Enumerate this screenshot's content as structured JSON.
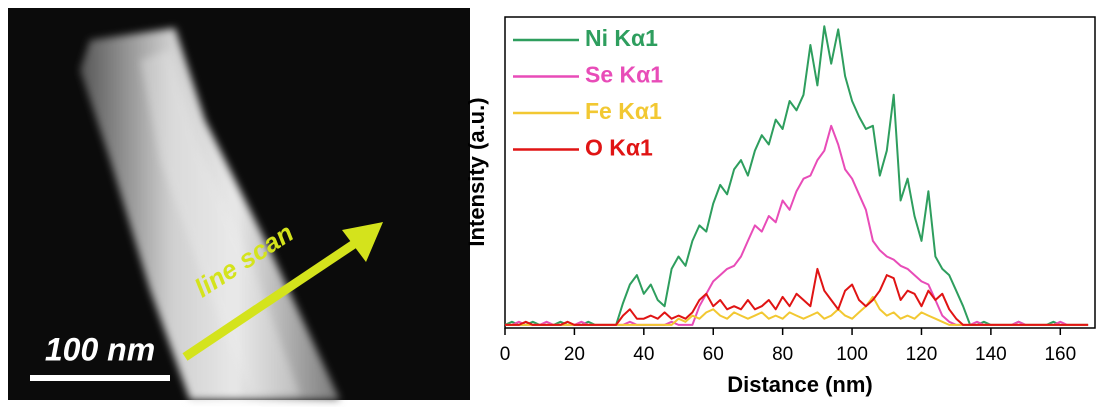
{
  "image": {
    "annotation": "line scan",
    "scale_bar": "100 nm"
  },
  "chart_data": {
    "type": "line",
    "xlabel": "Distance (nm)",
    "ylabel": "Intensity (a.u.)",
    "xlim": [
      0,
      170
    ],
    "ylim": [
      0,
      100
    ],
    "xticks": [
      0,
      20,
      40,
      60,
      80,
      100,
      120,
      140,
      160
    ],
    "legend": "upper left",
    "x": [
      0,
      2,
      4,
      6,
      8,
      10,
      12,
      14,
      16,
      18,
      20,
      22,
      24,
      26,
      28,
      30,
      32,
      34,
      36,
      38,
      40,
      42,
      44,
      46,
      48,
      50,
      52,
      54,
      56,
      58,
      60,
      62,
      64,
      66,
      68,
      70,
      72,
      74,
      76,
      78,
      80,
      82,
      84,
      86,
      88,
      90,
      92,
      94,
      96,
      98,
      100,
      102,
      104,
      106,
      108,
      110,
      112,
      114,
      116,
      118,
      120,
      122,
      124,
      126,
      128,
      130,
      132,
      134,
      136,
      138,
      140,
      142,
      144,
      146,
      148,
      150,
      152,
      154,
      156,
      158,
      160,
      162,
      164,
      166,
      168
    ],
    "series": [
      {
        "name": "Ni Kα1",
        "color": "#2e9e5e",
        "values": [
          1,
          2,
          1,
          1,
          2,
          1,
          1,
          1,
          2,
          1,
          1,
          1,
          2,
          1,
          1,
          1,
          1,
          8,
          14,
          17,
          11,
          14,
          9,
          7,
          19,
          23,
          20,
          28,
          33,
          31,
          40,
          46,
          43,
          51,
          54,
          49,
          57,
          62,
          59,
          67,
          64,
          73,
          70,
          75,
          91,
          78,
          97,
          85,
          96,
          81,
          73,
          68,
          64,
          65,
          49,
          57,
          75,
          41,
          48,
          36,
          28,
          44,
          23,
          19,
          17,
          12,
          7,
          1,
          1,
          2,
          1,
          1,
          1,
          1,
          2,
          1,
          1,
          1,
          1,
          2,
          1,
          1,
          1,
          1,
          1
        ]
      },
      {
        "name": "Se Kα1",
        "color": "#e84cb8",
        "values": [
          1,
          1,
          2,
          1,
          1,
          1,
          2,
          1,
          1,
          1,
          1,
          2,
          1,
          1,
          1,
          1,
          1,
          1,
          2,
          1,
          1,
          1,
          1,
          1,
          2,
          1,
          1,
          1,
          7,
          11,
          15,
          17,
          19,
          20,
          23,
          28,
          33,
          31,
          36,
          34,
          41,
          38,
          44,
          48,
          49,
          54,
          57,
          65,
          59,
          51,
          48,
          43,
          38,
          28,
          25,
          23,
          22,
          20,
          19,
          17,
          15,
          14,
          9,
          4,
          2,
          1,
          1,
          1,
          2,
          1,
          1,
          1,
          1,
          1,
          2,
          1,
          1,
          1,
          1,
          1,
          2,
          1,
          1,
          1,
          1
        ]
      },
      {
        "name": "Fe Kα1",
        "color": "#f2c832",
        "values": [
          1,
          1,
          1,
          1,
          1,
          1,
          1,
          1,
          1,
          1,
          1,
          1,
          1,
          1,
          1,
          1,
          1,
          1,
          1,
          1,
          1,
          1,
          1,
          1,
          1,
          3,
          2,
          4,
          3,
          5,
          6,
          4,
          3,
          5,
          4,
          3,
          4,
          5,
          3,
          4,
          3,
          5,
          4,
          3,
          4,
          5,
          3,
          4,
          6,
          4,
          3,
          5,
          7,
          10,
          6,
          4,
          5,
          3,
          4,
          3,
          5,
          4,
          3,
          2,
          1,
          1,
          1,
          1,
          1,
          1,
          1,
          1,
          1,
          1,
          1,
          1,
          1,
          1,
          1,
          1,
          1,
          1,
          1,
          1,
          1
        ]
      },
      {
        "name": "O Kα1",
        "color": "#e01414",
        "values": [
          1,
          1,
          1,
          2,
          1,
          1,
          1,
          1,
          1,
          2,
          1,
          1,
          1,
          1,
          1,
          1,
          1,
          4,
          6,
          3,
          3,
          4,
          3,
          5,
          3,
          4,
          3,
          5,
          9,
          11,
          7,
          9,
          6,
          7,
          6,
          9,
          6,
          7,
          9,
          6,
          10,
          7,
          11,
          9,
          7,
          19,
          12,
          9,
          6,
          12,
          14,
          9,
          7,
          9,
          12,
          17,
          16,
          9,
          12,
          11,
          7,
          12,
          9,
          11,
          6,
          3,
          1,
          1,
          1,
          1,
          1,
          1,
          1,
          1,
          1,
          1,
          1,
          1,
          1,
          1,
          1,
          1,
          1,
          1,
          1
        ]
      }
    ]
  }
}
